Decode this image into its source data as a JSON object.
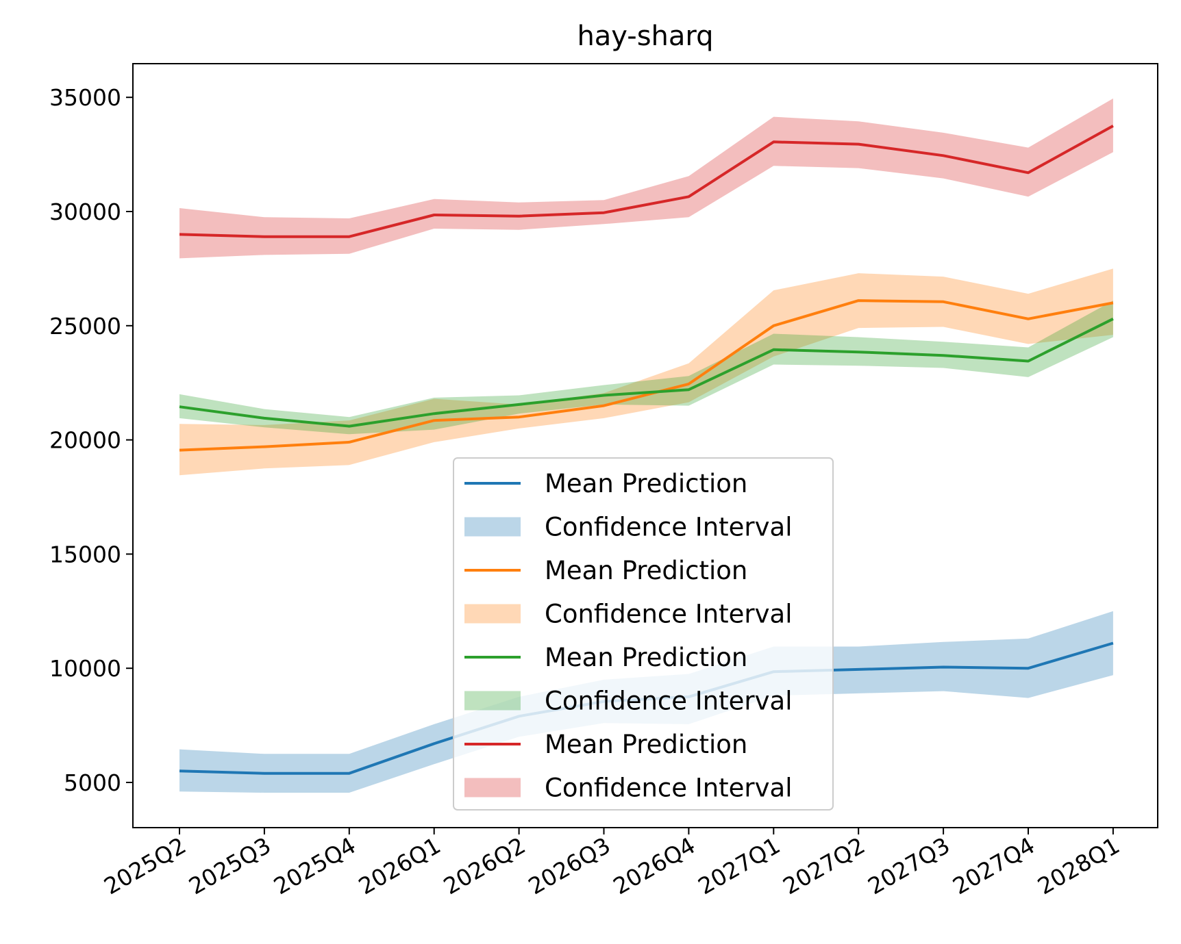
{
  "chart_data": {
    "type": "line",
    "title": "hay-sharq",
    "xlabel": "",
    "ylabel": "",
    "categories": [
      "2025Q2",
      "2025Q3",
      "2025Q4",
      "2026Q1",
      "2026Q2",
      "2026Q3",
      "2026Q4",
      "2027Q1",
      "2027Q2",
      "2027Q3",
      "2027Q4",
      "2028Q1"
    ],
    "yticks": [
      5000,
      10000,
      15000,
      20000,
      25000,
      30000,
      35000
    ],
    "ylim": [
      3000,
      36500
    ],
    "grid": false,
    "legend_position": "lower center",
    "series": [
      {
        "name": "Mean Prediction",
        "band_name": "Confidence Interval",
        "color": "#1f77b4",
        "values": [
          5500,
          5400,
          5400,
          6700,
          7900,
          8550,
          8750,
          9850,
          9950,
          10050,
          10000,
          11100
        ],
        "lower": [
          4600,
          4550,
          4550,
          5800,
          7000,
          7600,
          7550,
          8800,
          8900,
          9000,
          8700,
          9700
        ],
        "upper": [
          6450,
          6250,
          6250,
          7550,
          8750,
          9500,
          9750,
          10950,
          10950,
          11150,
          11300,
          12500
        ]
      },
      {
        "name": "Mean Prediction",
        "band_name": "Confidence Interval",
        "color": "#ff7f0e",
        "values": [
          19550,
          19700,
          19900,
          20850,
          21000,
          21500,
          22450,
          25000,
          26100,
          26050,
          25300,
          26000
        ],
        "lower": [
          18450,
          18750,
          18900,
          19900,
          20500,
          20950,
          21650,
          23650,
          24900,
          24950,
          24200,
          24600
        ],
        "upper": [
          20700,
          20650,
          20850,
          21800,
          21550,
          22050,
          23350,
          26550,
          27300,
          27150,
          26400,
          27500
        ]
      },
      {
        "name": "Mean Prediction",
        "band_name": "Confidence Interval",
        "color": "#2ca02c",
        "values": [
          21450,
          20950,
          20600,
          21150,
          21550,
          21950,
          22200,
          23950,
          23850,
          23700,
          23450,
          25300
        ],
        "lower": [
          20950,
          20550,
          20250,
          20450,
          21150,
          21550,
          21500,
          23300,
          23250,
          23150,
          22750,
          24500
        ],
        "upper": [
          22000,
          21350,
          21000,
          21850,
          21950,
          22400,
          22800,
          24650,
          24500,
          24300,
          24050,
          26100
        ]
      },
      {
        "name": "Mean Prediction",
        "band_name": "Confidence Interval",
        "color": "#d62728",
        "values": [
          29000,
          28900,
          28900,
          29850,
          29800,
          29950,
          30650,
          33050,
          32950,
          32450,
          31700,
          33750
        ],
        "lower": [
          27950,
          28100,
          28150,
          29250,
          29200,
          29450,
          29750,
          32000,
          31900,
          31450,
          30650,
          32600
        ],
        "upper": [
          30150,
          29750,
          29700,
          30550,
          30400,
          30500,
          31550,
          34150,
          33950,
          33450,
          32800,
          34950
        ]
      }
    ]
  }
}
